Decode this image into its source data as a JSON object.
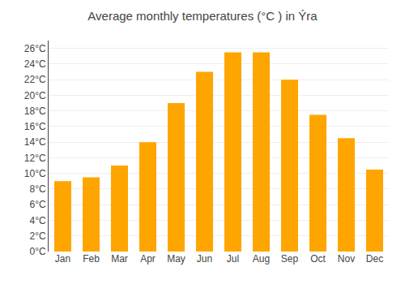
{
  "chart_data": {
    "type": "bar",
    "title": "Average monthly temperatures (°C ) in Ýra",
    "categories": [
      "Jan",
      "Feb",
      "Mar",
      "Apr",
      "May",
      "Jun",
      "Jul",
      "Aug",
      "Sep",
      "Oct",
      "Nov",
      "Dec"
    ],
    "values": [
      9.0,
      9.5,
      11.0,
      14.0,
      19.0,
      23.0,
      25.5,
      25.5,
      22.0,
      17.5,
      14.5,
      10.5
    ],
    "color": "#FFA500",
    "ylim": [
      0,
      27
    ],
    "yticks": [
      {
        "value": 0,
        "label": "0°C"
      },
      {
        "value": 2,
        "label": "2°C"
      },
      {
        "value": 4,
        "label": "4°C"
      },
      {
        "value": 6,
        "label": "6°C"
      },
      {
        "value": 8,
        "label": "8°C"
      },
      {
        "value": 10,
        "label": "10°C"
      },
      {
        "value": 12,
        "label": "12°C"
      },
      {
        "value": 14,
        "label": "14°C"
      },
      {
        "value": 16,
        "label": "16°C"
      },
      {
        "value": 18,
        "label": "18°C"
      },
      {
        "value": 20,
        "label": "20°C"
      },
      {
        "value": 22,
        "label": "22°C"
      },
      {
        "value": 24,
        "label": "24°C"
      },
      {
        "value": 26,
        "label": "26°C"
      }
    ],
    "grid": true
  }
}
